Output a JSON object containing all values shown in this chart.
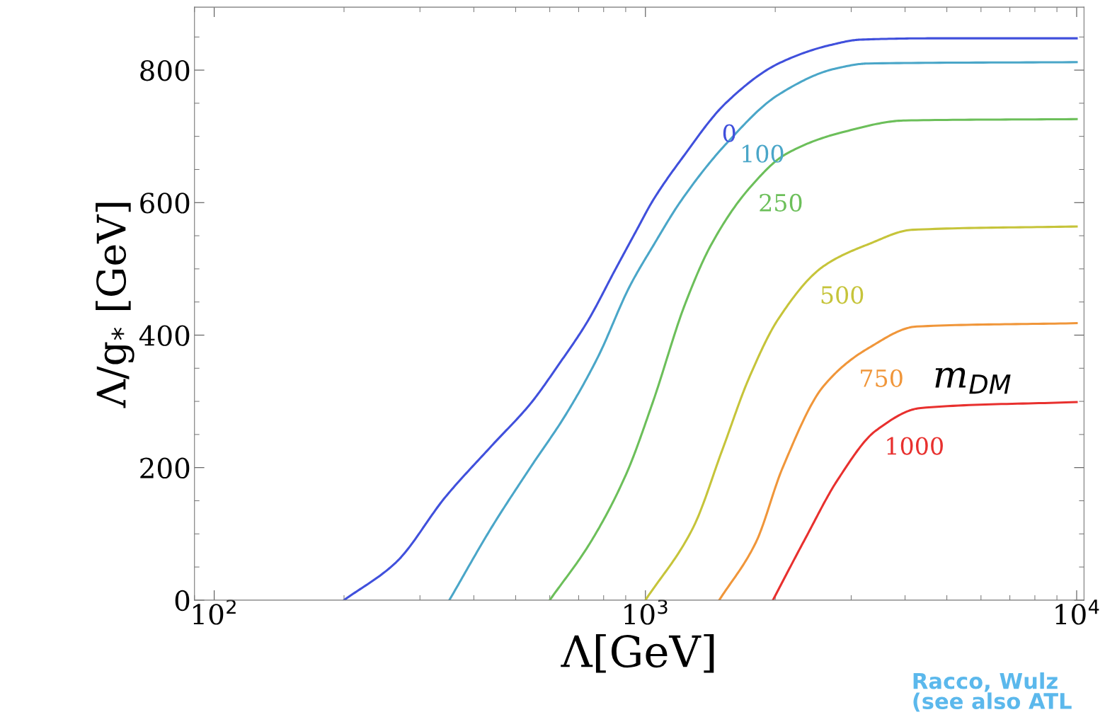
{
  "chart_data": {
    "type": "line",
    "xlabel": "Λ[GeV]",
    "ylabel": "Λ/g$_{*}$ [GeV]",
    "legend_title": "m$_{DM}$",
    "log": "x",
    "xlim": [
      90,
      10400
    ],
    "ylim": [
      0,
      895
    ],
    "xticks": [
      {
        "value": 100,
        "label": "10$^{2}$"
      },
      {
        "value": 1000,
        "label": "10$^{3}$"
      },
      {
        "value": 10000,
        "label": "10$^{4}$"
      }
    ],
    "yticks": [
      0,
      200,
      400,
      600,
      800
    ],
    "grid": false,
    "legend": false,
    "marker": "none",
    "line_style": "solid",
    "annotations": [
      "Racco, Wulz\n(see also ATL"
    ],
    "series": [
      {
        "name": "0",
        "color": "#4050dc",
        "x": [
          200,
          264,
          344,
          440,
          542,
          630,
          733,
          853,
          955,
          1038,
          1213,
          1540,
          2036,
          2692,
          3155,
          4697,
          10000
        ],
        "values": [
          0,
          57,
          156,
          233,
          297,
          356,
          420,
          500,
          559,
          602,
          666,
          751,
          810,
          838,
          846,
          848,
          848
        ]
      },
      {
        "name": "100",
        "color": "#4aa6c8",
        "x": [
          351,
          440,
          542,
          655,
          776,
          920,
          1038,
          1213,
          1540,
          2036,
          2748,
          3283,
          10000
        ],
        "values": [
          0,
          110,
          201,
          281,
          367,
          474,
          533,
          604,
          689,
          763,
          802,
          810,
          812
        ]
      },
      {
        "name": "250",
        "color": "#6cbf5a",
        "x": [
          600,
          747,
          902,
          1038,
          1236,
          1422,
          1738,
          2114,
          2854,
          4010,
          10000
        ],
        "values": [
          0,
          88,
          190,
          297,
          447,
          537,
          621,
          673,
          706,
          724,
          726
        ]
      },
      {
        "name": "500",
        "color": "#c6c43a",
        "x": [
          1000,
          1289,
          1510,
          1738,
          2036,
          2588,
          3283,
          4165,
          10000
        ],
        "values": [
          0,
          109,
          228,
          335,
          425,
          504,
          537,
          559,
          564
        ]
      },
      {
        "name": "750",
        "color": "#f0963a",
        "x": [
          1483,
          1803,
          2078,
          2588,
          3283,
          4261,
          10000
        ],
        "values": [
          0,
          87,
          199,
          323,
          380,
          413,
          418
        ]
      },
      {
        "name": "1000",
        "color": "#e8302e",
        "x": [
          1975,
          2344,
          2800,
          3425,
          4350,
          10000
        ],
        "values": [
          0,
          92,
          183,
          256,
          290,
          299
        ]
      }
    ]
  }
}
